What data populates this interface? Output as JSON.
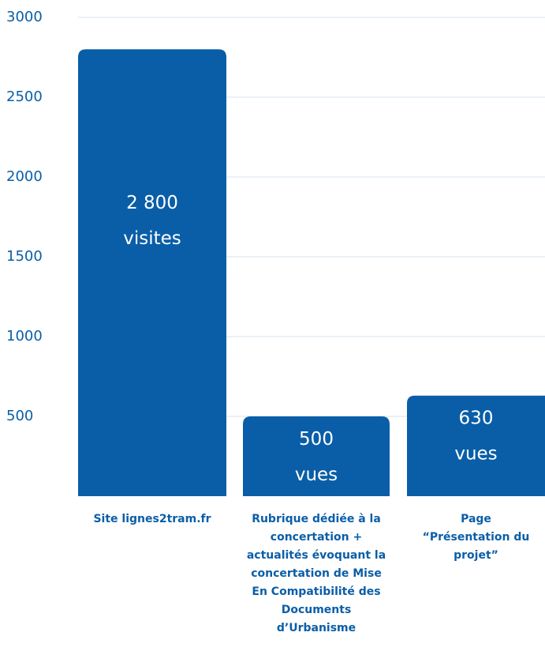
{
  "chart_data": {
    "type": "bar",
    "categories": [
      "Site lignes2tram.fr",
      "Rubrique dédiée à la concertation + actualités évoquant la concertation de Mise En Compatibilité des Documents d’Urbanisme",
      "Page “Présentation du projet”"
    ],
    "values": [
      2800,
      500,
      630
    ],
    "value_labels": [
      [
        "2 800",
        "visites"
      ],
      [
        "500",
        "vues"
      ],
      [
        "630",
        "vues"
      ]
    ],
    "color": "#0a5ea8",
    "ylim": [
      0,
      3000
    ],
    "yticks": [
      500,
      1000,
      1500,
      2000,
      2500,
      3000
    ],
    "grid": true
  }
}
